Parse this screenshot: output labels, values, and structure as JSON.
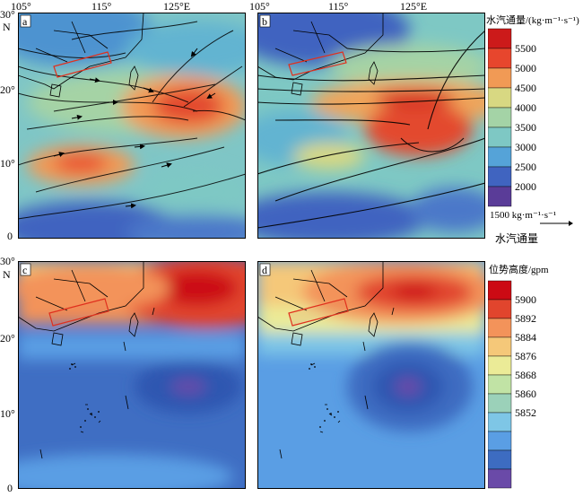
{
  "panels": [
    {
      "id": "a",
      "label": "a",
      "type": "vapor"
    },
    {
      "id": "b",
      "label": "b",
      "type": "vapor"
    },
    {
      "id": "c",
      "label": "c",
      "type": "height"
    },
    {
      "id": "d",
      "label": "d",
      "type": "height"
    }
  ],
  "axes": {
    "lon_ticks": [
      "105°",
      "115°",
      "125°E"
    ],
    "lat_ticks": [
      "30°",
      "20°",
      "10°",
      "0"
    ],
    "north_label": "N"
  },
  "legend_vapor": {
    "title": "水汽通量/(kg·m⁻¹·s⁻¹)",
    "levels": [
      "5500",
      "5000",
      "4500",
      "4000",
      "3500",
      "3000",
      "2500",
      "2000"
    ],
    "colors": [
      "#cc1a1a",
      "#e7462d",
      "#f19a55",
      "#d8d882",
      "#a4d3a6",
      "#7ec8c4",
      "#55a3d8",
      "#4064c0",
      "#5a3c98"
    ],
    "vector_ref": "1500 kg·m⁻¹·s⁻¹",
    "vector_caption": "水汽通量"
  },
  "legend_height": {
    "title": "位势高度/gpm",
    "levels": [
      "5900",
      "5892",
      "5884",
      "5876",
      "5868",
      "5860",
      "5852"
    ],
    "colors": [
      "#cc0a14",
      "#e1452d",
      "#f3935a",
      "#f5c879",
      "#ebeb97",
      "#c1e3a5",
      "#9bd1b9",
      "#7ec6e6",
      "#5a9ee4",
      "#3d6cc1",
      "#6a4aa8"
    ]
  }
}
